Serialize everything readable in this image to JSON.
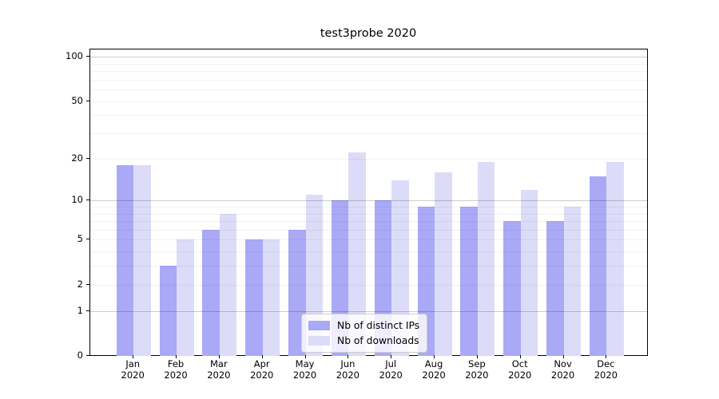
{
  "chart_data": {
    "type": "bar",
    "title": "test3probe 2020",
    "categories": [
      "Jan",
      "Feb",
      "Mar",
      "Apr",
      "May",
      "Jun",
      "Jul",
      "Aug",
      "Sep",
      "Oct",
      "Nov",
      "Dec"
    ],
    "category_year": "2020",
    "series": [
      {
        "name": "Nb of distinct IPs",
        "color": "#a9a9f6",
        "values": [
          18,
          3,
          6,
          5,
          6,
          10,
          10,
          9,
          9,
          7,
          7,
          15
        ]
      },
      {
        "name": "Nb of downloads",
        "color": "#dcdcf9",
        "values": [
          18,
          5,
          8,
          5,
          11,
          22,
          14,
          16,
          19,
          12,
          9,
          19
        ]
      }
    ],
    "yscale": "log1p",
    "ylim": [
      0,
      112
    ],
    "yticks": [
      0,
      1,
      2,
      5,
      10,
      20,
      50,
      100
    ],
    "major_gridlines": [
      1,
      10,
      100
    ],
    "minor_gridlines": [
      2,
      3,
      4,
      5,
      6,
      7,
      8,
      9,
      20,
      30,
      40,
      50,
      60,
      70,
      80,
      90
    ],
    "grid": "on",
    "legend_position": "lower center",
    "xlabel": "",
    "ylabel": ""
  },
  "colors": {
    "axis": "#000000",
    "major_grid": "#cccccc",
    "minor_grid": "#ededed",
    "background": "#ffffff"
  }
}
